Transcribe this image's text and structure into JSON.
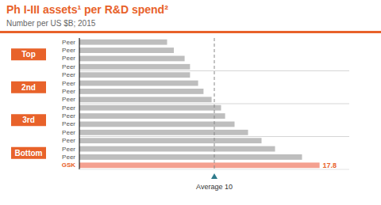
{
  "chart_data": {
    "type": "bar",
    "orientation": "horizontal",
    "title": "Ph I-III assets¹ per R&D spend²",
    "subtitle": "Number per US $B; 2015",
    "groups": [
      {
        "label": "Top",
        "categories": [
          "Peer",
          "Peer",
          "Peer",
          "Peer"
        ],
        "values": [
          6.5,
          7.0,
          7.8,
          8.2
        ],
        "colors": [
          "#BEBEBE",
          "#BEBEBE",
          "#BEBEBE",
          "#BEBEBE"
        ]
      },
      {
        "label": "2nd",
        "categories": [
          "Peer",
          "Peer",
          "Peer",
          "Peer"
        ],
        "values": [
          8.2,
          8.8,
          9.2,
          9.8
        ],
        "colors": [
          "#BEBEBE",
          "#BEBEBE",
          "#BEBEBE",
          "#BEBEBE"
        ]
      },
      {
        "label": "3rd",
        "categories": [
          "Peer",
          "Peer",
          "Peer",
          "Peer"
        ],
        "values": [
          10.5,
          10.8,
          11.5,
          12.5
        ],
        "colors": [
          "#BEBEBE",
          "#BEBEBE",
          "#BEBEBE",
          "#BEBEBE"
        ]
      },
      {
        "label": "Bottom",
        "categories": [
          "Peer",
          "Peer",
          "Peer",
          "GSK"
        ],
        "values": [
          13.5,
          14.5,
          16.5,
          17.8
        ],
        "colors": [
          "#BEBEBE",
          "#BEBEBE",
          "#BEBEBE",
          "#F4A090"
        ],
        "value_labels": [
          null,
          null,
          null,
          "17.8"
        ]
      }
    ],
    "average": {
      "value": 10,
      "label": "Average 10",
      "color": "#2E7B8C"
    },
    "xlim": [
      0,
      20
    ],
    "tick_labels": false,
    "grid": false
  }
}
